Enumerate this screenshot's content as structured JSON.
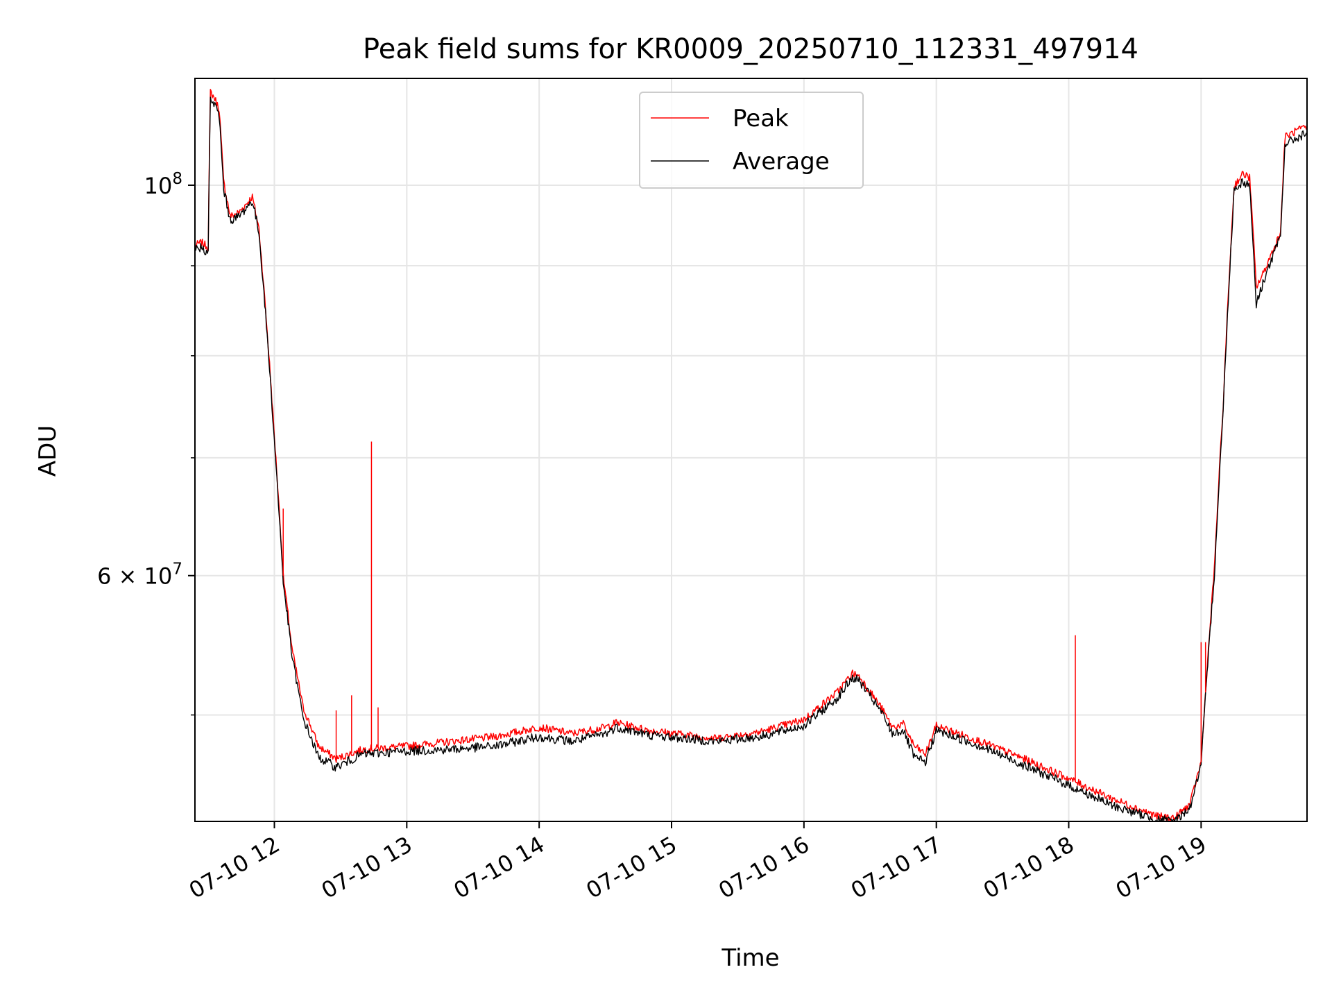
{
  "chart_data": {
    "type": "line",
    "title": "Peak field sums for KR0009_20250710_112331_497914",
    "xlabel": "Time",
    "ylabel": "ADU",
    "x_scale": "time (hours, 2025-07-10)",
    "y_scale": "log",
    "xlim": [
      "11:24",
      "19:48"
    ],
    "ylim": [
      43500000,
      115000000
    ],
    "grid": true,
    "legend_position": "upper center",
    "x_ticks": [
      "07-10 12",
      "07-10 13",
      "07-10 14",
      "07-10 15",
      "07-10 16",
      "07-10 17",
      "07-10 18",
      "07-10 19"
    ],
    "y_ticks_major": [
      {
        "value": 60000000,
        "label": "6 × 10^7"
      },
      {
        "value": 100000000,
        "label": "10^8"
      }
    ],
    "y_ticks_minor": [
      50000000,
      70000000,
      80000000,
      90000000
    ],
    "series": [
      {
        "name": "Peak",
        "color": "#ff0000",
        "points": [
          [
            "11:24",
            92.4
          ],
          [
            "11:27",
            92.8
          ],
          [
            "11:30",
            92.2
          ],
          [
            "11:31",
            113.0
          ],
          [
            "11:33",
            112.0
          ],
          [
            "11:35",
            110.5
          ],
          [
            "11:37",
            100.5
          ],
          [
            "11:40",
            96.0
          ],
          [
            "11:44",
            96.5
          ],
          [
            "11:50",
            98.5
          ],
          [
            "11:53",
            94.5
          ],
          [
            "11:56",
            85.0
          ],
          [
            "12:00",
            72.0
          ],
          [
            "12:04",
            60.0
          ],
          [
            "12:08",
            54.5
          ],
          [
            "12:13",
            50.5
          ],
          [
            "12:20",
            48.0
          ],
          [
            "12:28",
            47.2
          ],
          [
            "12:40",
            47.8
          ],
          [
            "13:00",
            48.0
          ],
          [
            "13:20",
            48.3
          ],
          [
            "13:40",
            48.6
          ],
          [
            "14:00",
            49.2
          ],
          [
            "14:15",
            48.8
          ],
          [
            "14:30",
            49.2
          ],
          [
            "14:35",
            49.5
          ],
          [
            "14:50",
            49.0
          ],
          [
            "15:20",
            48.5
          ],
          [
            "15:40",
            48.9
          ],
          [
            "16:00",
            49.7
          ],
          [
            "16:15",
            51.5
          ],
          [
            "16:22",
            52.8
          ],
          [
            "16:25",
            52.6
          ],
          [
            "16:35",
            50.5
          ],
          [
            "16:40",
            49.2
          ],
          [
            "16:45",
            49.4
          ],
          [
            "16:50",
            48.0
          ],
          [
            "16:55",
            47.5
          ],
          [
            "17:00",
            49.3
          ],
          [
            "17:20",
            48.3
          ],
          [
            "17:40",
            47.2
          ],
          [
            "18:00",
            46.0
          ],
          [
            "18:20",
            44.8
          ],
          [
            "18:40",
            43.8
          ],
          [
            "18:48",
            43.7
          ],
          [
            "18:55",
            44.5
          ],
          [
            "19:00",
            47.0
          ],
          [
            "19:06",
            60.5
          ],
          [
            "19:10",
            75.0
          ],
          [
            "19:15",
            100.0
          ],
          [
            "19:19",
            101.5
          ],
          [
            "19:22",
            101.0
          ],
          [
            "19:25",
            87.5
          ],
          [
            "19:28",
            89.0
          ],
          [
            "19:36",
            94.0
          ],
          [
            "19:38",
            106.5
          ],
          [
            "19:44",
            107.5
          ],
          [
            "19:48",
            107.8
          ]
        ],
        "spikes": [
          [
            "12:04",
            65.5
          ],
          [
            "12:28",
            50.3
          ],
          [
            "12:35",
            51.3
          ],
          [
            "12:44",
            71.5
          ],
          [
            "12:47",
            50.5
          ],
          [
            "18:03",
            55.5
          ],
          [
            "19:00",
            55.0
          ],
          [
            "19:02",
            55.0
          ]
        ]
      },
      {
        "name": "Average",
        "color": "#000000",
        "points": [
          [
            "11:24",
            92.0
          ],
          [
            "11:27",
            92.2
          ],
          [
            "11:30",
            91.5
          ],
          [
            "11:31",
            112.0
          ],
          [
            "11:33",
            111.0
          ],
          [
            "11:35",
            109.5
          ],
          [
            "11:37",
            99.5
          ],
          [
            "11:40",
            95.5
          ],
          [
            "11:44",
            96.0
          ],
          [
            "11:50",
            98.0
          ],
          [
            "11:53",
            94.0
          ],
          [
            "11:56",
            84.5
          ],
          [
            "12:00",
            71.5
          ],
          [
            "12:04",
            59.5
          ],
          [
            "12:08",
            54.0
          ],
          [
            "12:13",
            49.8
          ],
          [
            "12:20",
            47.3
          ],
          [
            "12:28",
            46.7
          ],
          [
            "12:40",
            47.5
          ],
          [
            "13:00",
            47.7
          ],
          [
            "13:20",
            47.8
          ],
          [
            "13:40",
            48.0
          ],
          [
            "14:00",
            48.6
          ],
          [
            "14:15",
            48.3
          ],
          [
            "14:30",
            48.8
          ],
          [
            "14:35",
            49.2
          ],
          [
            "14:50",
            48.7
          ],
          [
            "15:20",
            48.3
          ],
          [
            "15:40",
            48.6
          ],
          [
            "16:00",
            49.3
          ],
          [
            "16:15",
            51.1
          ],
          [
            "16:22",
            52.5
          ],
          [
            "16:25",
            52.3
          ],
          [
            "16:35",
            50.2
          ],
          [
            "16:40",
            48.8
          ],
          [
            "16:45",
            49.0
          ],
          [
            "16:50",
            47.3
          ],
          [
            "16:55",
            47.0
          ],
          [
            "17:00",
            49.0
          ],
          [
            "17:20",
            48.0
          ],
          [
            "17:40",
            46.8
          ],
          [
            "18:00",
            45.6
          ],
          [
            "18:20",
            44.4
          ],
          [
            "18:40",
            43.6
          ],
          [
            "18:48",
            43.5
          ],
          [
            "18:55",
            44.3
          ],
          [
            "19:00",
            46.8
          ],
          [
            "19:06",
            60.0
          ],
          [
            "19:10",
            74.5
          ],
          [
            "19:15",
            99.5
          ],
          [
            "19:19",
            100.5
          ],
          [
            "19:22",
            100.0
          ],
          [
            "19:25",
            85.5
          ],
          [
            "19:28",
            88.0
          ],
          [
            "19:36",
            93.5
          ],
          [
            "19:38",
            105.5
          ],
          [
            "19:44",
            106.5
          ],
          [
            "19:48",
            107.0
          ]
        ]
      }
    ],
    "value_units_note": "y values in millions of ADU"
  }
}
